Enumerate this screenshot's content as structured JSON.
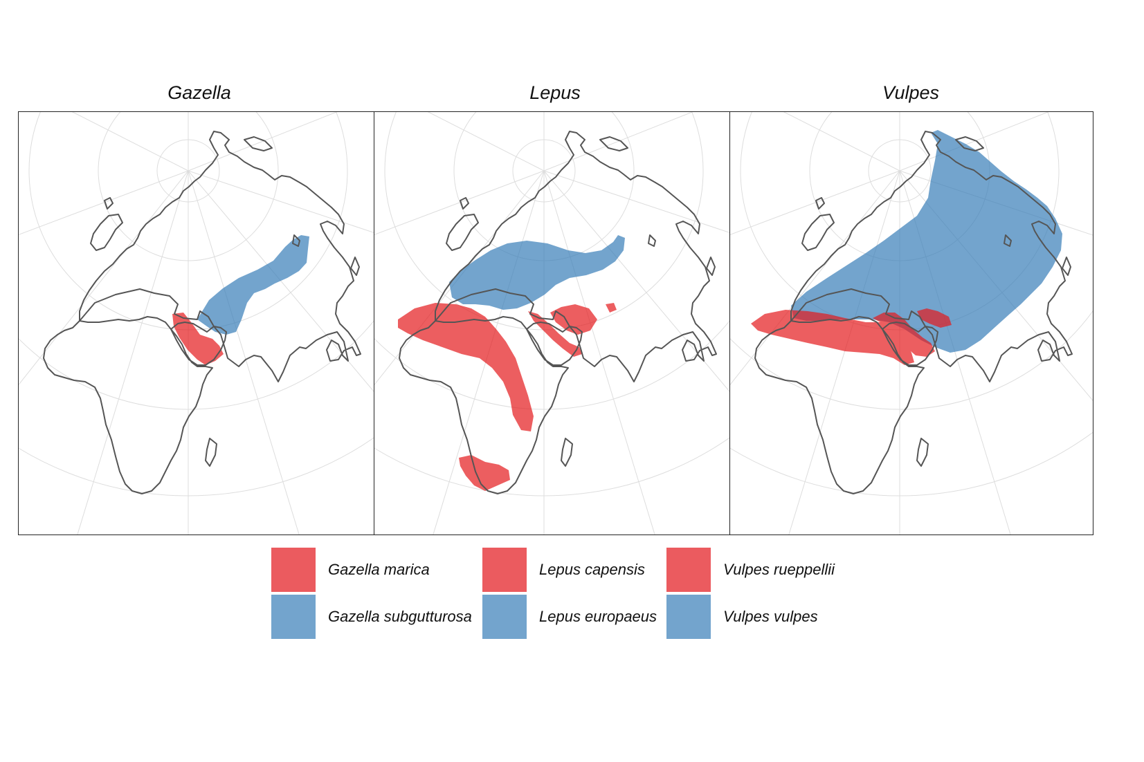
{
  "colors": {
    "range_a": "#E41A1C",
    "range_b": "#377EB8",
    "coastline": "#555555",
    "graticule": "#DDDDDD"
  },
  "panels": [
    {
      "title": "Gazella"
    },
    {
      "title": "Lepus"
    },
    {
      "title": "Vulpes"
    }
  ],
  "legend": [
    {
      "label": "Gazella marica",
      "color": "#E41A1C"
    },
    {
      "label": "Gazella subgutturosa",
      "color": "#377EB8"
    },
    {
      "label": "Lepus capensis",
      "color": "#E41A1C"
    },
    {
      "label": "Lepus europaeus",
      "color": "#377EB8"
    },
    {
      "label": "Vulpes rueppellii",
      "color": "#E41A1C"
    },
    {
      "label": "Vulpes vulpes",
      "color": "#377EB8"
    }
  ]
}
